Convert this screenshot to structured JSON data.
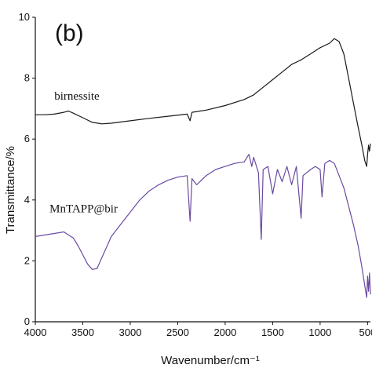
{
  "chart_data": {
    "type": "line",
    "panel_label": "(b)",
    "xlabel": "Wavenumber/cm⁻¹",
    "ylabel": "Transmittance/%",
    "xlim": [
      4000,
      470
    ],
    "ylim": [
      0,
      10
    ],
    "x_ticks": [
      4000,
      3500,
      3000,
      2500,
      2000,
      1500,
      1000,
      500
    ],
    "x_tick_labels": [
      "4000",
      "3500",
      "3000",
      "2500",
      "2000",
      "1500",
      "1000",
      "500"
    ],
    "y_ticks": [
      0,
      2,
      4,
      6,
      8,
      10
    ],
    "y_tick_labels": [
      "0",
      "2",
      "4",
      "6",
      "8",
      "10"
    ],
    "grid": false,
    "series": [
      {
        "name": "birnessite",
        "color": "#1a1a1a",
        "points": [
          [
            4000,
            6.8
          ],
          [
            3900,
            6.8
          ],
          [
            3800,
            6.82
          ],
          [
            3700,
            6.88
          ],
          [
            3650,
            6.92
          ],
          [
            3600,
            6.85
          ],
          [
            3500,
            6.7
          ],
          [
            3400,
            6.55
          ],
          [
            3300,
            6.5
          ],
          [
            3200,
            6.52
          ],
          [
            3000,
            6.6
          ],
          [
            2800,
            6.68
          ],
          [
            2600,
            6.75
          ],
          [
            2400,
            6.82
          ],
          [
            2370,
            6.6
          ],
          [
            2350,
            6.88
          ],
          [
            2200,
            6.95
          ],
          [
            2000,
            7.1
          ],
          [
            1800,
            7.3
          ],
          [
            1700,
            7.45
          ],
          [
            1600,
            7.7
          ],
          [
            1500,
            7.95
          ],
          [
            1400,
            8.2
          ],
          [
            1300,
            8.45
          ],
          [
            1200,
            8.6
          ],
          [
            1100,
            8.8
          ],
          [
            1000,
            9.0
          ],
          [
            900,
            9.15
          ],
          [
            850,
            9.3
          ],
          [
            800,
            9.2
          ],
          [
            750,
            8.8
          ],
          [
            700,
            8.0
          ],
          [
            650,
            7.2
          ],
          [
            600,
            6.4
          ],
          [
            560,
            5.8
          ],
          [
            530,
            5.3
          ],
          [
            510,
            5.1
          ],
          [
            500,
            5.5
          ],
          [
            490,
            5.8
          ],
          [
            480,
            5.6
          ],
          [
            470,
            5.85
          ]
        ]
      },
      {
        "name": "MnTAPP@bir",
        "color": "#6a4aa0",
        "points": [
          [
            4000,
            2.8
          ],
          [
            3900,
            2.85
          ],
          [
            3800,
            2.9
          ],
          [
            3700,
            2.95
          ],
          [
            3650,
            2.85
          ],
          [
            3600,
            2.75
          ],
          [
            3550,
            2.5
          ],
          [
            3500,
            2.2
          ],
          [
            3450,
            1.9
          ],
          [
            3400,
            1.72
          ],
          [
            3350,
            1.75
          ],
          [
            3300,
            2.1
          ],
          [
            3200,
            2.8
          ],
          [
            3100,
            3.2
          ],
          [
            3000,
            3.6
          ],
          [
            2900,
            4.0
          ],
          [
            2800,
            4.3
          ],
          [
            2700,
            4.5
          ],
          [
            2600,
            4.65
          ],
          [
            2500,
            4.75
          ],
          [
            2400,
            4.8
          ],
          [
            2370,
            3.3
          ],
          [
            2350,
            4.7
          ],
          [
            2300,
            4.5
          ],
          [
            2200,
            4.8
          ],
          [
            2100,
            5.0
          ],
          [
            2000,
            5.1
          ],
          [
            1900,
            5.2
          ],
          [
            1800,
            5.25
          ],
          [
            1750,
            5.5
          ],
          [
            1720,
            5.1
          ],
          [
            1700,
            5.4
          ],
          [
            1650,
            4.9
          ],
          [
            1620,
            2.7
          ],
          [
            1600,
            5.0
          ],
          [
            1550,
            5.1
          ],
          [
            1500,
            4.2
          ],
          [
            1450,
            5.0
          ],
          [
            1400,
            4.6
          ],
          [
            1350,
            5.1
          ],
          [
            1300,
            4.5
          ],
          [
            1250,
            5.1
          ],
          [
            1200,
            3.4
          ],
          [
            1180,
            4.8
          ],
          [
            1100,
            5.0
          ],
          [
            1050,
            5.1
          ],
          [
            1000,
            5.0
          ],
          [
            980,
            4.1
          ],
          [
            950,
            5.2
          ],
          [
            900,
            5.3
          ],
          [
            850,
            5.2
          ],
          [
            800,
            4.8
          ],
          [
            750,
            4.4
          ],
          [
            700,
            3.8
          ],
          [
            650,
            3.2
          ],
          [
            600,
            2.5
          ],
          [
            560,
            1.8
          ],
          [
            530,
            1.2
          ],
          [
            510,
            0.8
          ],
          [
            500,
            1.5
          ],
          [
            490,
            1.0
          ],
          [
            480,
            1.6
          ],
          [
            470,
            0.9
          ]
        ]
      }
    ]
  }
}
